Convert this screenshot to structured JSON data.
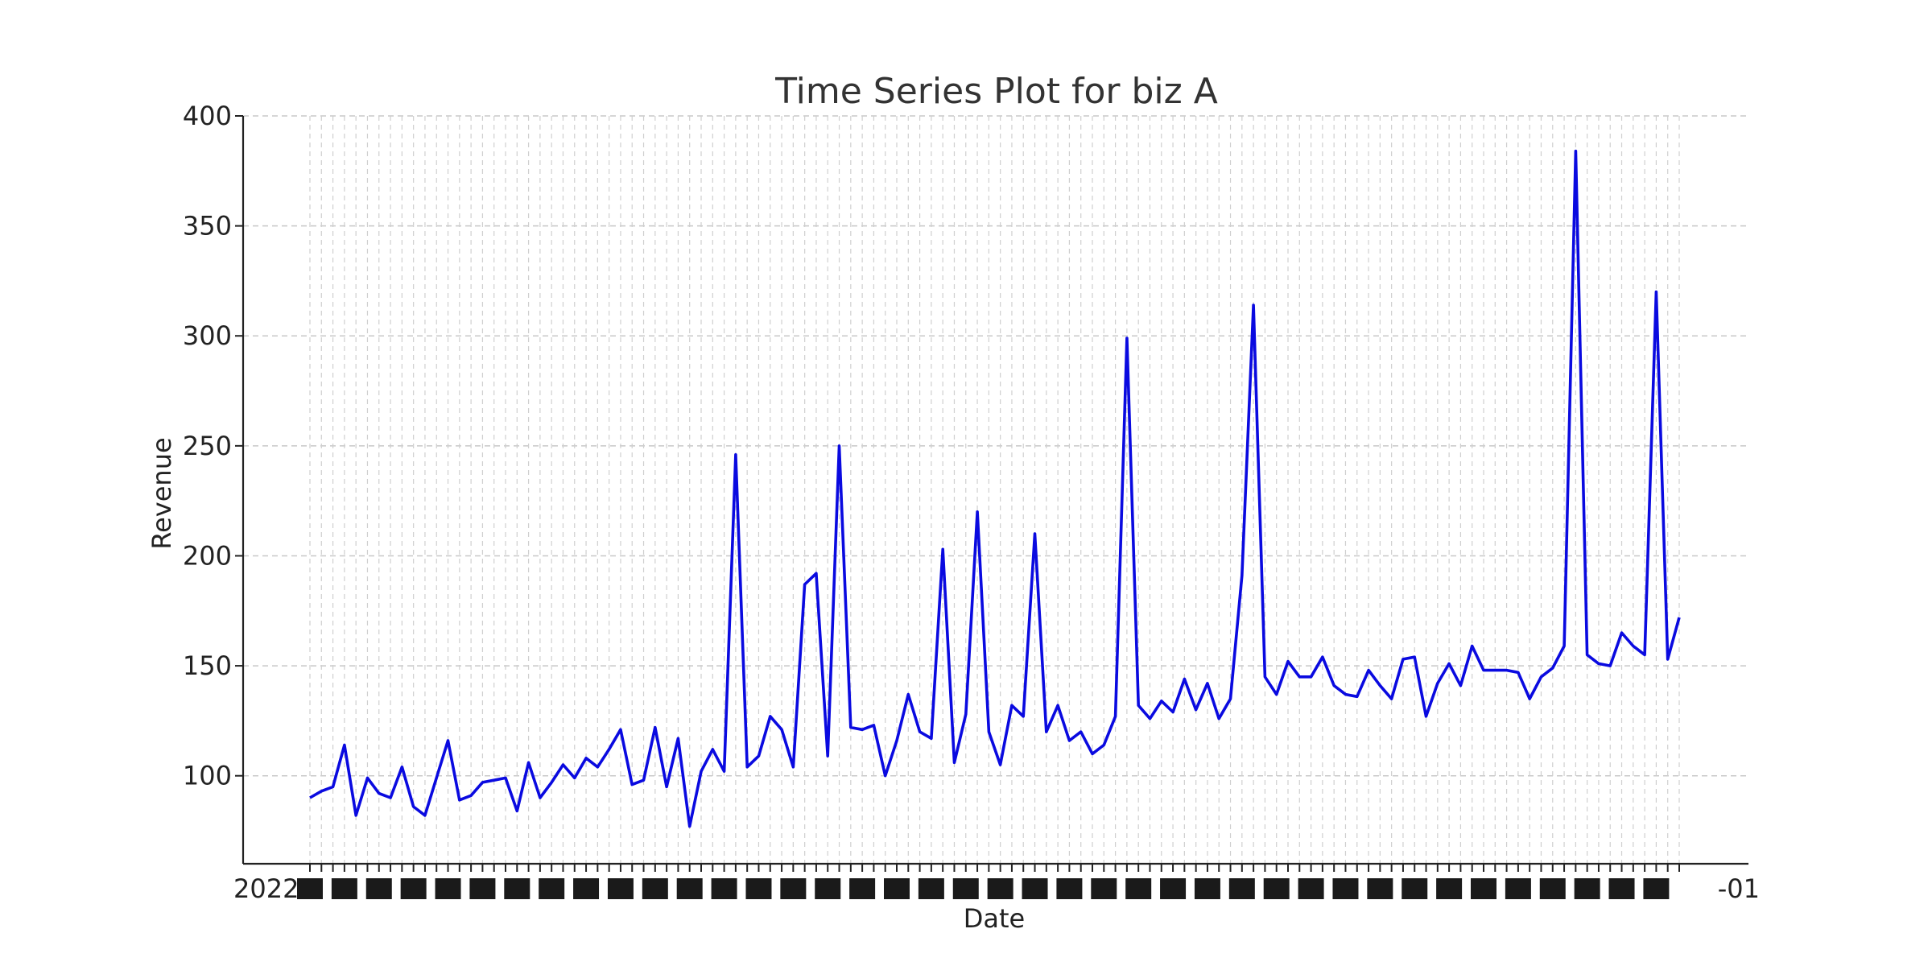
{
  "chart_data": {
    "type": "line",
    "title": "Time Series Plot for biz A",
    "xlabel": "Date",
    "ylabel": "Revenue",
    "ylim": [
      60,
      400
    ],
    "yticks": [
      100,
      150,
      200,
      250,
      300,
      350,
      400
    ],
    "grid": true,
    "line_color": "#0a0ae0",
    "xtick_labels_visible": "2022-01-01 … 2022-10-01 (dense, overlapping weekly labels)",
    "series": [
      {
        "values": [
          90,
          93,
          95,
          114,
          82,
          99,
          92,
          90,
          104,
          86,
          82,
          99,
          116,
          89,
          91,
          97,
          98,
          99,
          84,
          106,
          90,
          97,
          105,
          99,
          108,
          104,
          112,
          121,
          96,
          98,
          122,
          95,
          117,
          77,
          102,
          112,
          102,
          246,
          104,
          109,
          127,
          121,
          104,
          187,
          192,
          109,
          250,
          122,
          121,
          123,
          100,
          116,
          137,
          120,
          117,
          203,
          106,
          128,
          220,
          120,
          105,
          132,
          127,
          210,
          120,
          132,
          116,
          120,
          110,
          114,
          127,
          299,
          132,
          126,
          134,
          129,
          144,
          130,
          142,
          126,
          135,
          191,
          314,
          145,
          137,
          152,
          145,
          145,
          154,
          141,
          137,
          136,
          148,
          141,
          135,
          153,
          154,
          127,
          142,
          151,
          141,
          159,
          148,
          148,
          148,
          147,
          135,
          145,
          149,
          159,
          384,
          155,
          151,
          150,
          165,
          159,
          155,
          320,
          153,
          172
        ]
      }
    ]
  }
}
